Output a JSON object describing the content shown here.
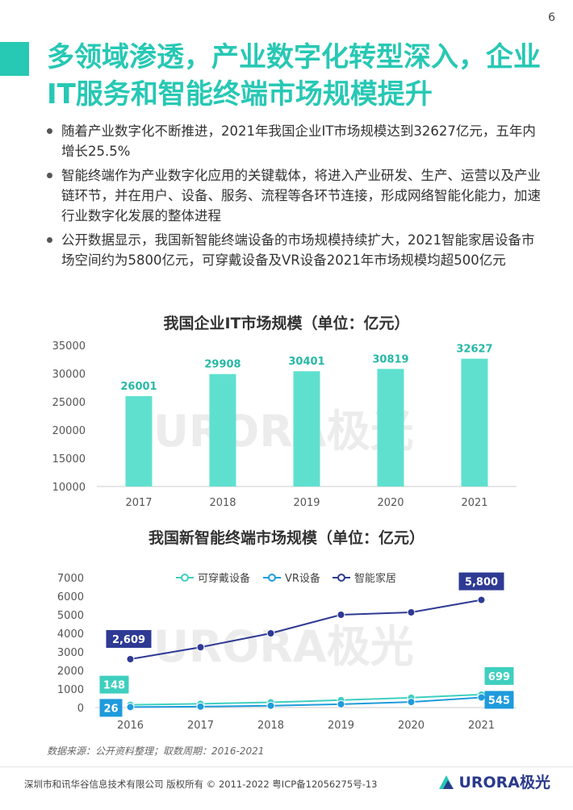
{
  "page_number": "6",
  "title": "多领域渗透，产业数字化转型深入，企业IT服务和智能终端市场规模提升",
  "bullets": [
    "随着产业数字化不断推进，2021年我国企业IT市场规模达到32627亿元，五年内增长25.5%",
    "智能终端作为产业数字化应用的关键载体，将进入产业研发、生产、运营以及产业链环节，并在用户、设备、服务、流程等各环节连接，形成网络智能化能力，加速行业数字化发展的整体进程",
    "公开数据显示，我国新智能终端设备的市场规模持续扩大，2021智能家居设备市场空间约为5800亿元，可穿戴设备及VR设备2021年市场规模均超500亿元"
  ],
  "watermark": {
    "text": "URORA",
    "cn": "极光"
  },
  "chart_data": [
    {
      "type": "bar",
      "title": "我国企业IT市场规模（单位：亿元）",
      "categories": [
        "2017",
        "2018",
        "2019",
        "2020",
        "2021"
      ],
      "values": [
        26001,
        29908,
        30401,
        30819,
        32627
      ],
      "ylim": [
        10000,
        35000
      ],
      "yticks": [
        10000,
        15000,
        20000,
        25000,
        30000,
        35000
      ],
      "color": "#5fe0cf",
      "label_color": "#27b8a6"
    },
    {
      "type": "line",
      "title": "我国新智能终端市场规模（单位：亿元）",
      "categories": [
        "2016",
        "2017",
        "2018",
        "2019",
        "2020",
        "2021"
      ],
      "ylim": [
        0,
        7000
      ],
      "yticks": [
        0,
        1000,
        2000,
        3000,
        4000,
        5000,
        6000,
        7000
      ],
      "legend_position": "top",
      "series": [
        {
          "name": "可穿戴设备",
          "values": [
            148,
            200,
            280,
            400,
            530,
            699
          ],
          "color": "#3fcfbf",
          "labels": {
            "0": "148",
            "5": "699"
          }
        },
        {
          "name": "VR设备",
          "values": [
            26,
            50,
            100,
            180,
            300,
            545
          ],
          "color": "#1e9bdc",
          "labels": {
            "0": "26",
            "5": "545"
          }
        },
        {
          "name": "智能家居",
          "values": [
            2609,
            3250,
            4000,
            5000,
            5130,
            5800
          ],
          "color": "#2e3a93",
          "labels": {
            "0": "2,609",
            "5": "5,800"
          }
        }
      ]
    }
  ],
  "source": "数据来源：公开资料整理；取数周期：2016-2021",
  "footer": {
    "text": "深圳市和讯华谷信息技术有限公司 版权所有 © 2011-2022 粤ICP备12056275号-13",
    "logo": "URORA极光"
  }
}
